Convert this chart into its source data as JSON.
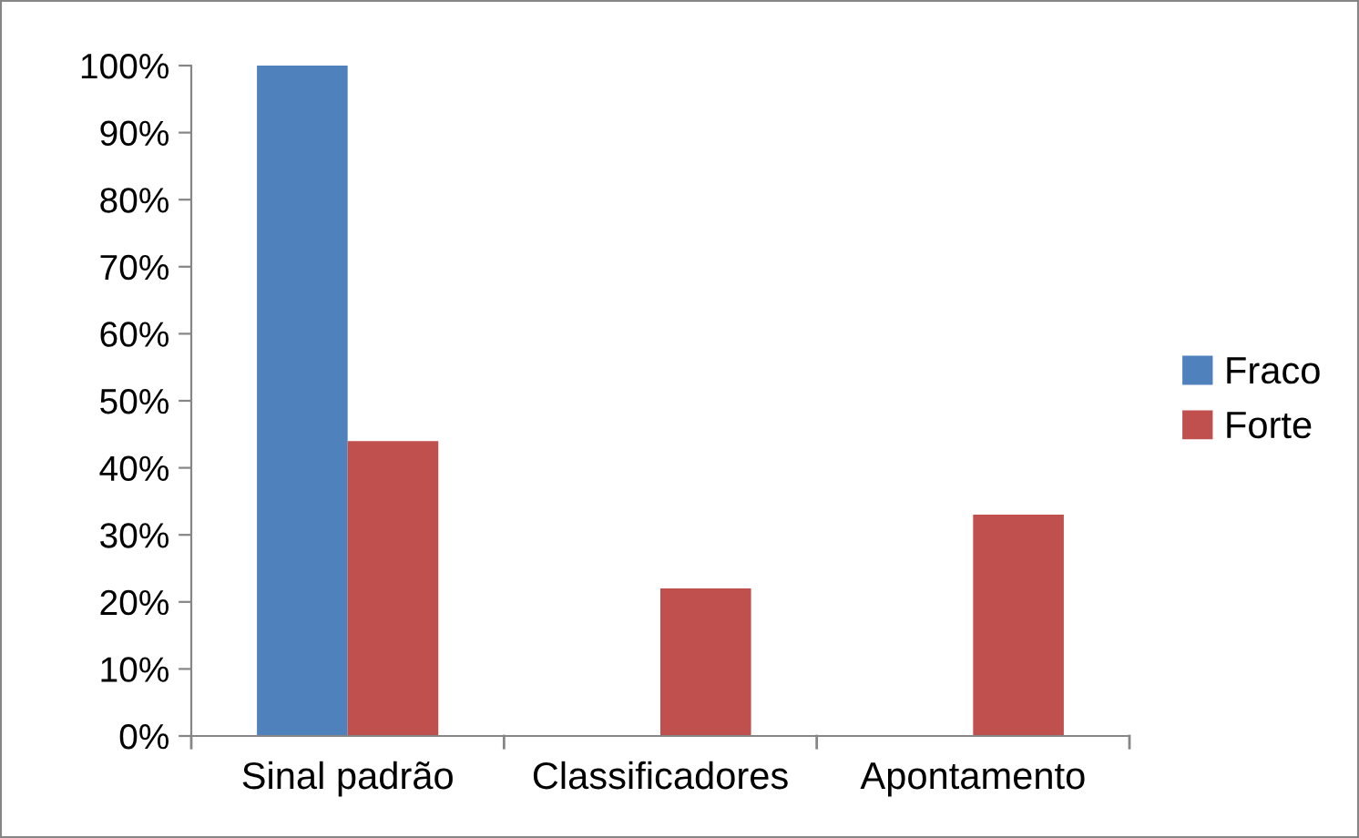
{
  "chart_data": {
    "type": "bar",
    "categories": [
      "Sinal padrão",
      "Classificadores",
      "Apontamento"
    ],
    "series": [
      {
        "name": "Fraco",
        "color": "#4f81bd",
        "values": [
          100,
          0,
          0
        ]
      },
      {
        "name": "Forte",
        "color": "#c0504d",
        "values": [
          44,
          22,
          33
        ]
      }
    ],
    "ylim": [
      0,
      100
    ],
    "yticks": [
      {
        "value": 0,
        "label": "0%"
      },
      {
        "value": 10,
        "label": "10%"
      },
      {
        "value": 20,
        "label": "20%"
      },
      {
        "value": 30,
        "label": "30%"
      },
      {
        "value": 40,
        "label": "40%"
      },
      {
        "value": 50,
        "label": "50%"
      },
      {
        "value": 60,
        "label": "60%"
      },
      {
        "value": 70,
        "label": "70%"
      },
      {
        "value": 80,
        "label": "80%"
      },
      {
        "value": 90,
        "label": "90%"
      },
      {
        "value": 100,
        "label": "100%"
      }
    ],
    "grid": false,
    "legend": "right"
  }
}
